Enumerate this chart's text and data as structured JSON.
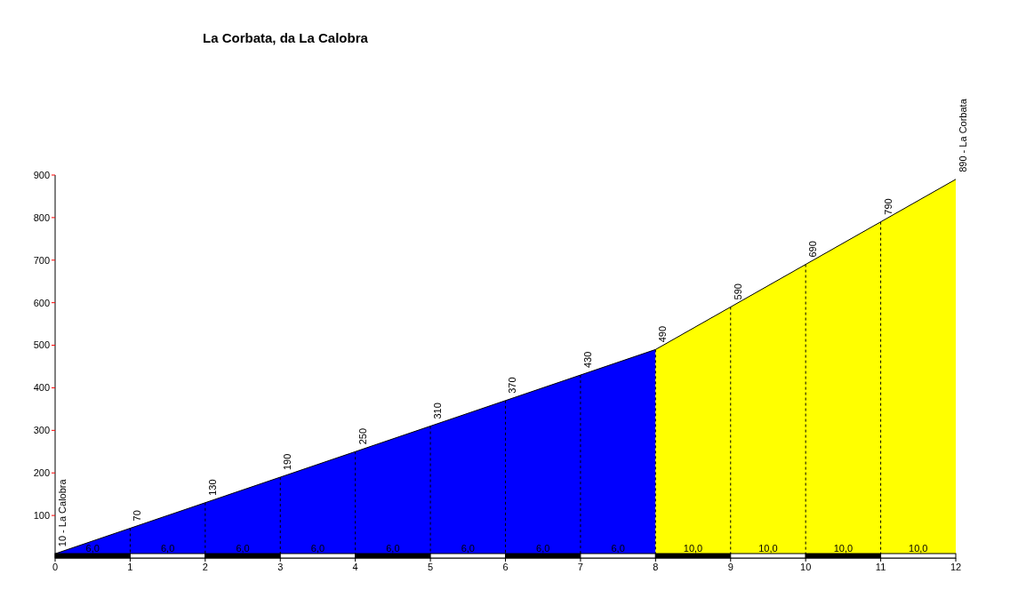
{
  "chart_data": {
    "type": "area",
    "title": "La Corbata, da La Calobra",
    "series": [
      {
        "color": "#0000ff",
        "x": [
          0,
          1,
          2,
          3,
          4,
          5,
          6,
          7,
          8
        ],
        "values": [
          10,
          70,
          130,
          190,
          250,
          310,
          370,
          430,
          490
        ],
        "value_labels": [
          "10 - La Calobra",
          "70",
          "130",
          "190",
          "250",
          "310",
          "370",
          "430",
          "490"
        ]
      },
      {
        "color": "#ffff00",
        "x": [
          8,
          9,
          10,
          11,
          12
        ],
        "values": [
          490,
          590,
          690,
          790,
          890
        ],
        "value_labels": [
          null,
          "590",
          "690",
          "790",
          "890 - La Corbata"
        ]
      }
    ],
    "annotations": [
      {
        "text": "6,0",
        "x": 0.5,
        "y": 0
      },
      {
        "text": "6,0",
        "x": 1.5,
        "y": 0
      },
      {
        "text": "6,0",
        "x": 2.5,
        "y": 0
      },
      {
        "text": "6,0",
        "x": 3.5,
        "y": 0
      },
      {
        "text": "6,0",
        "x": 4.5,
        "y": 0
      },
      {
        "text": "6,0",
        "x": 5.5,
        "y": 0
      },
      {
        "text": "6,0",
        "x": 6.5,
        "y": 0
      },
      {
        "text": "6,0",
        "x": 7.5,
        "y": 0
      },
      {
        "text": "10,0",
        "x": 8.5,
        "y": 0
      },
      {
        "text": "10,0",
        "x": 9.5,
        "y": 0
      },
      {
        "text": "10,0",
        "x": 10.5,
        "y": 0
      },
      {
        "text": "10,0",
        "x": 11.5,
        "y": 0
      }
    ],
    "xlim": [
      0,
      12
    ],
    "xticks": [
      0,
      1,
      2,
      3,
      4,
      5,
      6,
      7,
      8,
      9,
      10,
      11,
      12
    ],
    "grid": "x",
    "ylim": [
      0,
      900
    ],
    "yticks": [
      100,
      200,
      300,
      400,
      500,
      600,
      700,
      800,
      900
    ]
  }
}
